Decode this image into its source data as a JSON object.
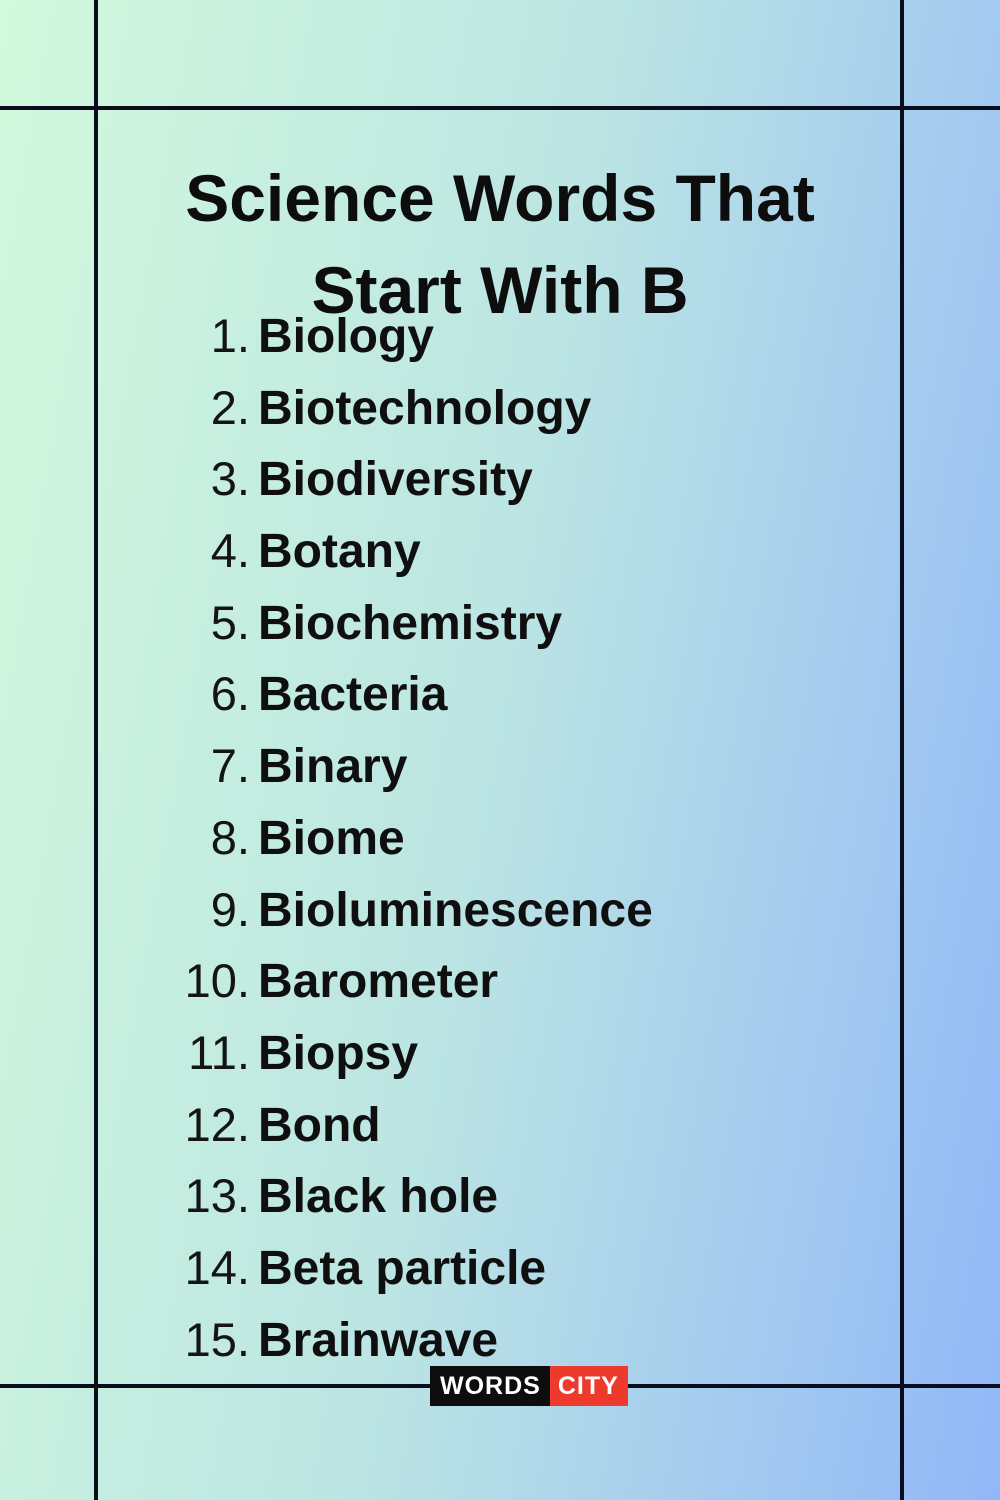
{
  "title": {
    "line1": "Science Words That",
    "line2": "Start With B"
  },
  "list": {
    "items": [
      {
        "number": "1.",
        "word": "Biology"
      },
      {
        "number": "2.",
        "word": "Biotechnology"
      },
      {
        "number": "3.",
        "word": "Biodiversity"
      },
      {
        "number": "4.",
        "word": "Botany"
      },
      {
        "number": "5.",
        "word": "Biochemistry"
      },
      {
        "number": "6.",
        "word": "Bacteria"
      },
      {
        "number": "7.",
        "word": "Binary"
      },
      {
        "number": "8.",
        "word": "Biome"
      },
      {
        "number": "9.",
        "word": "Bioluminescence"
      },
      {
        "number": "10.",
        "word": "Barometer"
      },
      {
        "number": "11.",
        "word": "Biopsy"
      },
      {
        "number": "12.",
        "word": "Bond"
      },
      {
        "number": "13.",
        "word": "Black hole"
      },
      {
        "number": "14.",
        "word": "Beta particle"
      },
      {
        "number": "15.",
        "word": "Brainwave"
      }
    ]
  },
  "logo": {
    "words": "WORDS",
    "city": "CITY"
  },
  "colors": {
    "background_left": "#d2f9dd",
    "background_middle": "#bce5e3",
    "background_right": "#92b7f8",
    "frame_line": "#0a0e1c",
    "text": "#0f0f0f",
    "logo_black": "#0d0d0d",
    "logo_red": "#ee3a2c",
    "logo_text": "#ffffff"
  }
}
